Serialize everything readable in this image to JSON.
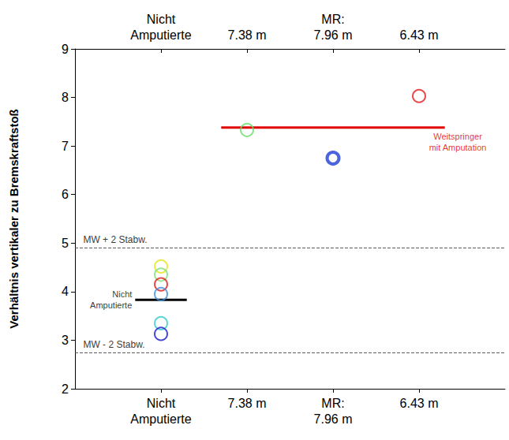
{
  "chart_data": {
    "type": "scatter",
    "y_label": "Verhältnis vertikaler zu Bremskraftstoß",
    "categories": [
      "Nicht Amputierte",
      "7.38 m",
      "MR: 7.96 m",
      "6.43 m"
    ],
    "ylim": [
      2,
      9
    ],
    "yticks": [
      2,
      3,
      4,
      5,
      6,
      7,
      8,
      9
    ],
    "grid": false,
    "points": [
      {
        "category": "Nicht Amputierte",
        "value": 4.52,
        "color": "#e6e619",
        "marker": "circle"
      },
      {
        "category": "Nicht Amputierte",
        "value": 4.35,
        "color": "#7fe07f",
        "marker": "circle"
      },
      {
        "category": "Nicht Amputierte",
        "value": 4.15,
        "color": "#e31a1c",
        "marker": "circle"
      },
      {
        "category": "Nicht Amputierte",
        "value": 3.95,
        "color": "#3c8de0",
        "marker": "circle"
      },
      {
        "category": "Nicht Amputierte",
        "value": 3.35,
        "color": "#33cccc",
        "marker": "circle"
      },
      {
        "category": "Nicht Amputierte",
        "value": 3.13,
        "color": "#1a1acc",
        "marker": "circle"
      },
      {
        "category": "7.38 m",
        "value": 7.33,
        "color": "#66dd66",
        "marker": "circle"
      },
      {
        "category": "MR: 7.96 m",
        "value": 6.75,
        "color": "#1f3fd6",
        "marker": "thick_circle"
      },
      {
        "category": "6.43 m",
        "value": 8.03,
        "color": "#e31a1c",
        "marker": "circle"
      }
    ],
    "reference_lines": [
      {
        "label": "MW + 2 Stabw.",
        "value": 4.9,
        "color": "#555555",
        "line_style": "dashed"
      },
      {
        "label": "MW - 2 Stabw.",
        "value": 2.74,
        "color": "#555555",
        "line_style": "dashed"
      },
      {
        "label": "Nicht Amputierte",
        "value": 3.83,
        "color": "#000000",
        "line_style": "solid",
        "from": "Nicht Amputierte",
        "to": "Nicht Amputierte"
      },
      {
        "label": "Weitspringer mit Amputation",
        "value": 7.38,
        "color": "#e00000",
        "line_style": "solid",
        "from": "7.38 m",
        "to": "6.43 m"
      }
    ]
  }
}
